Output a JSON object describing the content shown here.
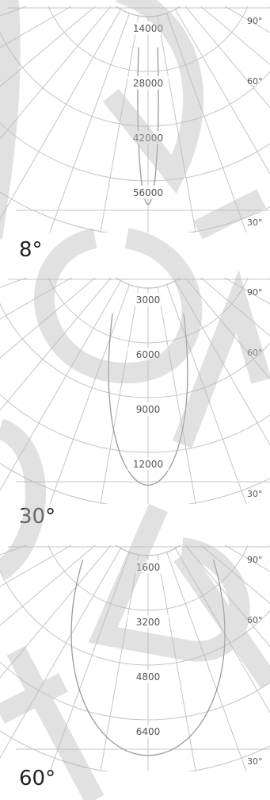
{
  "chart_data": [
    {
      "type": "polar",
      "title": "8°",
      "radial_ticks": [
        "14000",
        "28000",
        "42000",
        "56000"
      ],
      "radial_values": [
        14000,
        28000,
        42000,
        56000
      ],
      "angle_labels": [
        "90°",
        "60°",
        "30°"
      ],
      "series": [
        {
          "half_angle_deg": 4,
          "peak": 60000
        }
      ]
    },
    {
      "type": "polar",
      "title": "30°",
      "radial_ticks": [
        "3000",
        "6000",
        "9000",
        "12000"
      ],
      "radial_values": [
        3000,
        6000,
        9000,
        12000
      ],
      "angle_labels": [
        "90°",
        "60°",
        "30°"
      ],
      "series": [
        {
          "half_angle_deg": 15,
          "peak": 13500
        }
      ]
    },
    {
      "type": "polar",
      "title": "60°",
      "radial_ticks": [
        "1600",
        "3200",
        "4800",
        "6400"
      ],
      "radial_values": [
        1600,
        3200,
        4800,
        6400
      ],
      "angle_labels": [
        "90°",
        "60°",
        "30°"
      ],
      "series": [
        {
          "half_angle_deg": 30,
          "peak": 7300
        }
      ]
    }
  ],
  "colors": {
    "grid": "#c4c4c4",
    "curve": "#9a9a9a",
    "text": "#555555",
    "watermark": "#bdbdbd"
  }
}
